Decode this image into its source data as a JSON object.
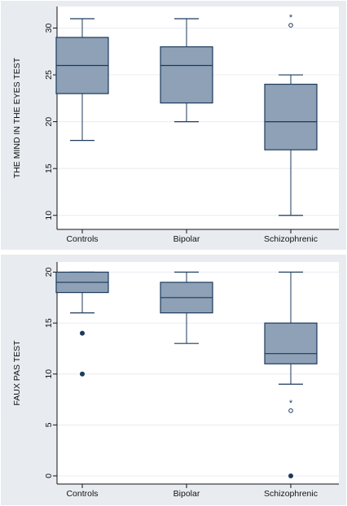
{
  "colors": {
    "panel_background": "#e8ecf1",
    "plot_background": "#ffffff",
    "box_fill": "#8ea1b7",
    "box_line": "#1c3a5a",
    "whisker": "#1c3a5a",
    "outlier": "#1c3a5a",
    "grid": "#e8ecf1",
    "axis": "#111111"
  },
  "chart_data": [
    {
      "type": "box",
      "title": "",
      "xlabel": "",
      "ylabel": "THE MIND IN THE EYES TEST",
      "ylim": [
        8.5,
        32.3
      ],
      "yticks": [
        10,
        15,
        20,
        25,
        30
      ],
      "grid": true,
      "categories": [
        "Controls",
        "Bipolar",
        "Schizophrenic"
      ],
      "boxes": [
        {
          "group": "Controls",
          "min": 18,
          "q1": 23,
          "median": 26,
          "q3": 29,
          "max": 31,
          "outliers": []
        },
        {
          "group": "Bipolar",
          "min": 20,
          "q1": 22,
          "median": 26,
          "q3": 28,
          "max": 31,
          "outliers": []
        },
        {
          "group": "Schizophrenic",
          "min": 10,
          "q1": 17,
          "median": 20,
          "q3": 24,
          "max": 25,
          "outliers": [
            30.3
          ],
          "outlier_marker": "*"
        }
      ]
    },
    {
      "type": "box",
      "title": "",
      "xlabel": "",
      "ylabel": "FAUX PAS TEST",
      "ylim": [
        -0.8,
        21
      ],
      "yticks": [
        0,
        5,
        10,
        15,
        20
      ],
      "grid": true,
      "categories": [
        "Controls",
        "Bipolar",
        "Schizophrenic"
      ],
      "boxes": [
        {
          "group": "Controls",
          "min": 16,
          "q1": 18,
          "median": 19,
          "q3": 20,
          "max": 20,
          "outliers": [
            14,
            10
          ]
        },
        {
          "group": "Bipolar",
          "min": 13,
          "q1": 16,
          "median": 17.5,
          "q3": 19,
          "max": 20,
          "outliers": []
        },
        {
          "group": "Schizophrenic",
          "min": 9,
          "q1": 11,
          "median": 12,
          "q3": 15,
          "max": 20,
          "outliers": [
            0
          ],
          "starred_outliers": [
            6.4
          ],
          "outlier_marker": "*"
        }
      ]
    }
  ]
}
